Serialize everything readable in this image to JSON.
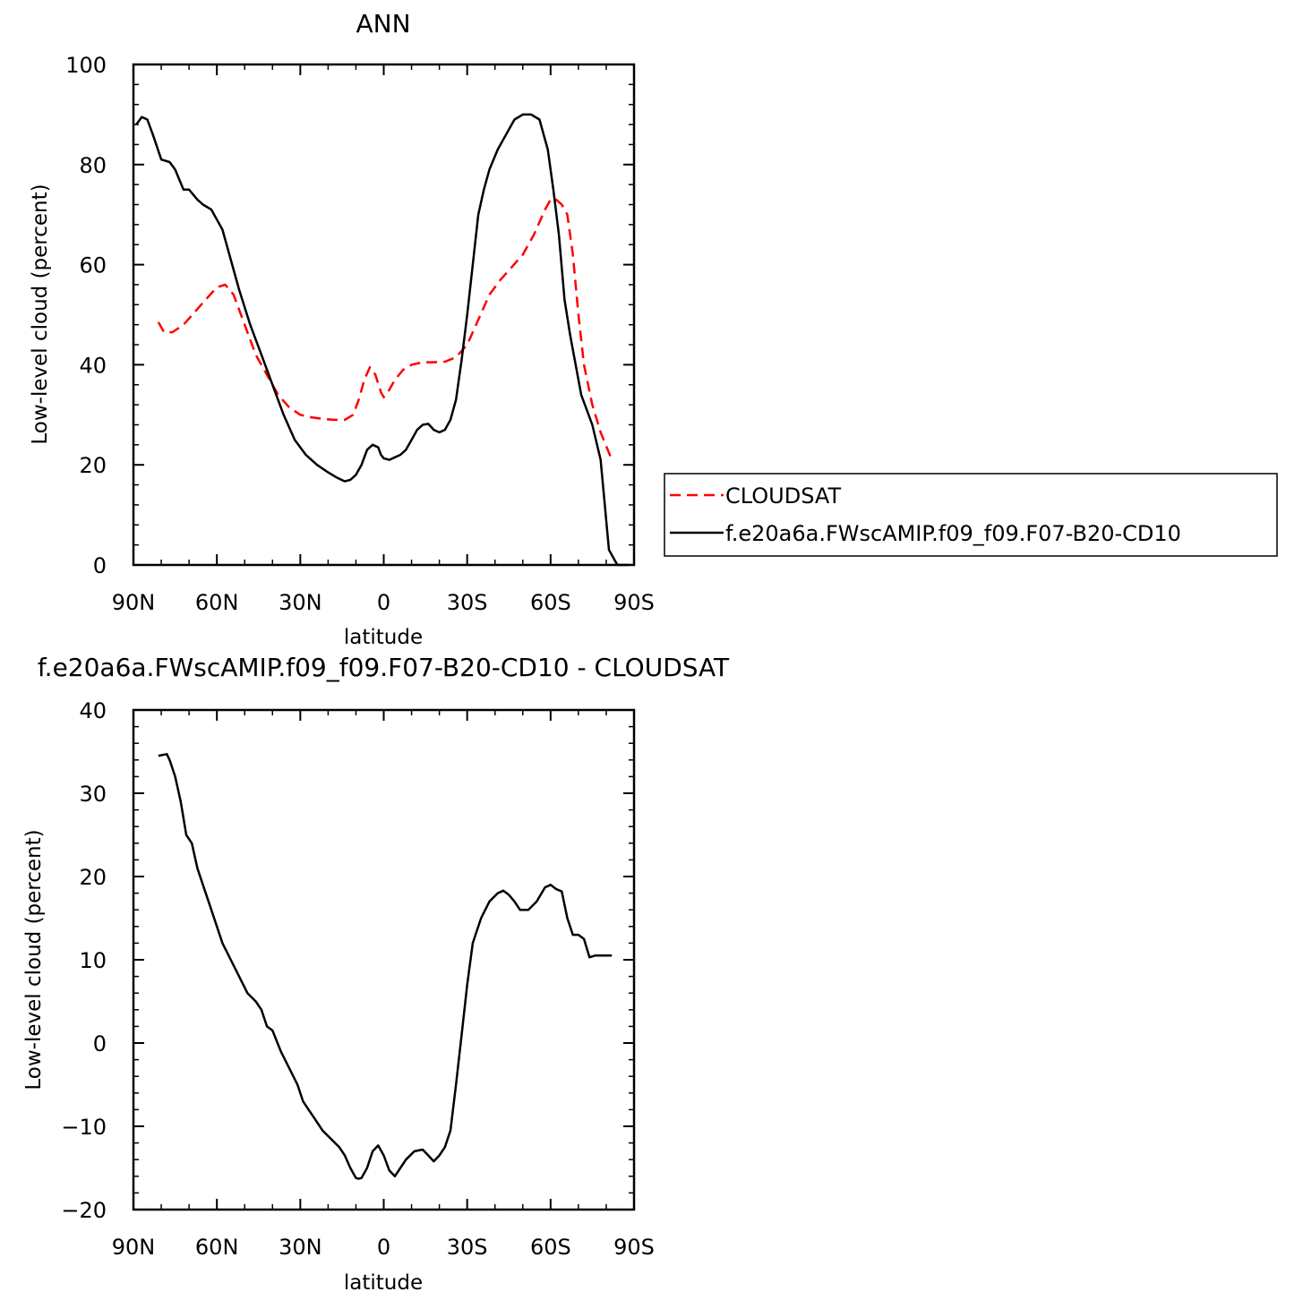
{
  "chart_data": [
    {
      "type": "line",
      "title": "ANN",
      "xlabel": "latitude",
      "ylabel": "Low-level cloud (percent)",
      "xlim": [
        90,
        -90
      ],
      "ylim": [
        0,
        100
      ],
      "x_ticks": [
        {
          "value": 90,
          "label": "90N"
        },
        {
          "value": 60,
          "label": "60N"
        },
        {
          "value": 30,
          "label": "30N"
        },
        {
          "value": 0,
          "label": "0"
        },
        {
          "value": -30,
          "label": "30S"
        },
        {
          "value": -60,
          "label": "60S"
        },
        {
          "value": -90,
          "label": "90S"
        }
      ],
      "y_ticks": [
        {
          "value": 0,
          "label": "0"
        },
        {
          "value": 20,
          "label": "20"
        },
        {
          "value": 40,
          "label": "40"
        },
        {
          "value": 60,
          "label": "60"
        },
        {
          "value": 80,
          "label": "80"
        },
        {
          "value": 100,
          "label": "100"
        }
      ],
      "legend": "right, outside plot",
      "series": [
        {
          "name": "CLOUDSAT",
          "color": "#ff0000",
          "dashed": true,
          "x": [
            81,
            79,
            76,
            72,
            68,
            64,
            60,
            57,
            54,
            50,
            46,
            42,
            38,
            34,
            30,
            26,
            22,
            18,
            14,
            11,
            9,
            7,
            5,
            3,
            1,
            0,
            -2,
            -4,
            -7,
            -10,
            -14,
            -18,
            -22,
            -26,
            -30,
            -34,
            -38,
            -42,
            -46,
            -50,
            -54,
            -58,
            -60,
            -62,
            -64,
            -66,
            -68,
            -70,
            -72,
            -75,
            -78,
            -82
          ],
          "values": [
            48.5,
            46.5,
            46.5,
            48,
            50.5,
            53,
            55.5,
            56,
            54,
            48,
            42,
            38,
            34,
            31.5,
            30,
            29.5,
            29.2,
            29,
            29,
            30,
            33,
            37,
            39.5,
            38,
            34.5,
            33.5,
            35,
            37,
            39,
            40,
            40.5,
            40.5,
            40.6,
            41.5,
            44,
            49,
            54,
            57,
            59.5,
            62,
            66,
            71,
            73,
            73,
            72,
            70,
            62,
            50,
            40,
            32,
            26.5,
            21
          ]
        },
        {
          "name": "f.e20a6a.FWscAMIP.f09_f09.F07-B20-CD10",
          "color": "#000000",
          "dashed": false,
          "x": [
            89,
            87,
            85,
            83,
            80,
            77,
            75,
            72,
            70,
            67,
            65,
            62,
            60,
            58,
            55,
            52,
            48,
            44,
            40,
            36,
            32,
            28,
            24,
            20,
            17,
            14,
            12,
            10,
            8,
            6,
            4,
            2,
            1,
            0,
            -2,
            -4,
            -6,
            -8,
            -10,
            -12,
            -14,
            -16,
            -18,
            -20,
            -22,
            -24,
            -26,
            -28,
            -30,
            -32,
            -34,
            -36,
            -38,
            -41,
            -44,
            -47,
            -50,
            -53,
            -56,
            -59,
            -61,
            -63,
            -65,
            -67,
            -69,
            -71,
            -73,
            -75,
            -78,
            -81,
            -84,
            -86,
            -88
          ],
          "values": [
            88,
            89.5,
            89,
            86,
            81,
            80.5,
            79,
            75,
            75,
            73,
            72,
            71,
            69,
            67,
            61,
            55,
            48,
            42,
            36,
            30,
            25,
            22,
            20,
            18.5,
            17.5,
            16.7,
            17,
            18,
            20,
            23,
            24,
            23.5,
            22,
            21.3,
            21,
            21.5,
            22,
            23,
            25,
            27,
            28,
            28.2,
            27,
            26.5,
            27,
            29,
            33,
            41,
            50,
            60,
            70,
            75,
            79,
            83,
            86,
            89,
            90,
            90,
            89,
            83,
            75,
            66,
            53,
            46,
            40,
            34,
            31,
            28,
            21,
            3,
            0,
            0,
            0
          ]
        }
      ]
    },
    {
      "type": "line",
      "title": "f.e20a6a.FWscAMIP.f09_f09.F07-B20-CD10 - CLOUDSAT",
      "xlabel": "latitude",
      "ylabel": "Low-level cloud (percent)",
      "xlim": [
        90,
        -90
      ],
      "ylim": [
        -20,
        40
      ],
      "x_ticks": [
        {
          "value": 90,
          "label": "90N"
        },
        {
          "value": 60,
          "label": "60N"
        },
        {
          "value": 30,
          "label": "30N"
        },
        {
          "value": 0,
          "label": "0"
        },
        {
          "value": -30,
          "label": "30S"
        },
        {
          "value": -60,
          "label": "60S"
        },
        {
          "value": -90,
          "label": "90S"
        }
      ],
      "y_ticks": [
        {
          "value": -20,
          "label": "−20"
        },
        {
          "value": -10,
          "label": "−10"
        },
        {
          "value": 0,
          "label": "0"
        },
        {
          "value": 10,
          "label": "10"
        },
        {
          "value": 20,
          "label": "20"
        },
        {
          "value": 30,
          "label": "30"
        },
        {
          "value": 40,
          "label": "40"
        }
      ],
      "series": [
        {
          "name": "",
          "color": "#000000",
          "dashed": false,
          "x": [
            81,
            78,
            77,
            75,
            73,
            71,
            69,
            67,
            65,
            62,
            60,
            58,
            55,
            52,
            49,
            46,
            44,
            42,
            40,
            37,
            34,
            31,
            29,
            27,
            25,
            22,
            19,
            16,
            14,
            12,
            10,
            9,
            8,
            6,
            4,
            2,
            0,
            -2,
            -4,
            -6,
            -8,
            -11,
            -14,
            -16,
            -18,
            -20,
            -22,
            -24,
            -26,
            -28,
            -30,
            -32,
            -35,
            -38,
            -41,
            -43,
            -45,
            -47,
            -49,
            -52,
            -55,
            -58,
            -60,
            -62,
            -64,
            -66,
            -68,
            -70,
            -72,
            -74,
            -76,
            -78,
            -80,
            -82
          ],
          "values": [
            34.5,
            34.7,
            34,
            32,
            29,
            25,
            24,
            21,
            19,
            16,
            14,
            12,
            10,
            8,
            6,
            5,
            4,
            2,
            1.5,
            -1,
            -3,
            -5,
            -7,
            -8,
            -9,
            -10.5,
            -11.5,
            -12.5,
            -13.5,
            -15,
            -16.2,
            -16.3,
            -16.2,
            -15,
            -13,
            -12.3,
            -13.5,
            -15.3,
            -16,
            -15,
            -14,
            -13,
            -12.8,
            -13.5,
            -14.2,
            -13.5,
            -12.5,
            -10.5,
            -5,
            1,
            7,
            12,
            15,
            17,
            18,
            18.3,
            17.8,
            17,
            16,
            16,
            17,
            18.7,
            19,
            18.5,
            18.2,
            15,
            13,
            13,
            12.5,
            10.3,
            10.5,
            10.5,
            10.5,
            10.5
          ]
        }
      ]
    }
  ]
}
